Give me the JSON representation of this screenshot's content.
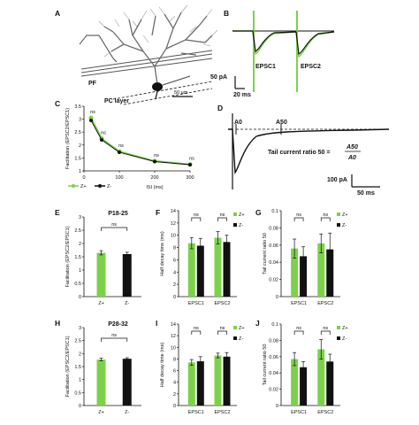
{
  "panel_labels": [
    "A",
    "B",
    "C",
    "D",
    "E",
    "F",
    "G",
    "H",
    "I",
    "J"
  ],
  "colors": {
    "z_plus": "#7dd14a",
    "z_minus": "#111111"
  },
  "panelA": {
    "labels": {
      "pf": "PF",
      "pc_layer": "PC layer",
      "scale": "50 µm"
    }
  },
  "panelB": {
    "labels": {
      "epsc1": "EPSC1",
      "epsc2": "EPSC2",
      "scale_y": "50 pA",
      "scale_x": "20 ms"
    }
  },
  "panelD": {
    "labels": {
      "a0": "A0",
      "a50": "A50",
      "formula_lhs": "Tail current ratio 50 =",
      "num": "A50",
      "den": "A0",
      "scale_y": "100 pA",
      "scale_x": "50 ms"
    }
  },
  "chart_data": [
    {
      "panel": "C",
      "type": "line",
      "xlabel": "ISI (ms)",
      "ylabel": "Facilitation (EPSC2/EPSC1)",
      "xticks": [
        "0",
        "100",
        "200",
        "300"
      ],
      "yticks": [
        "1",
        "1.5",
        "2",
        "2.5",
        "3",
        "3.5"
      ],
      "xlim": [
        0,
        300
      ],
      "ylim": [
        1,
        3.5
      ],
      "x": [
        20,
        50,
        100,
        200,
        300
      ],
      "series": [
        {
          "name": "Z+",
          "values": [
            3.05,
            2.25,
            1.75,
            1.38,
            1.25
          ]
        },
        {
          "name": "Z-",
          "values": [
            2.95,
            2.2,
            1.72,
            1.36,
            1.24
          ]
        }
      ],
      "annotations": [
        "ns",
        "ns",
        "ns",
        "ns",
        "ns"
      ],
      "legend": "bottom-left"
    },
    {
      "panel": "E",
      "type": "bar",
      "title": "P18-25",
      "ylabel": "Facilitation (EPSC2/EPSC1)",
      "yticks": [
        "0",
        "0.5",
        "1",
        "1.5",
        "2",
        "2.5",
        "3"
      ],
      "ylim": [
        0,
        3
      ],
      "categories": [
        "Z+",
        "Z-"
      ],
      "values": [
        1.65,
        1.6
      ],
      "errors": [
        0.08,
        0.07
      ],
      "annotation": "ns"
    },
    {
      "panel": "F",
      "type": "bar",
      "ylabel": "Half decay time (ms)",
      "yticks": [
        "0",
        "2",
        "4",
        "6",
        "8",
        "10",
        "12",
        "14"
      ],
      "ylim": [
        0,
        14
      ],
      "categories": [
        "EPSC1",
        "EPSC2"
      ],
      "series": [
        {
          "name": "Z+",
          "values": [
            8.7,
            9.6
          ],
          "errors": [
            0.9,
            1.0
          ]
        },
        {
          "name": "Z-",
          "values": [
            8.3,
            8.9
          ],
          "errors": [
            1.2,
            1.1
          ]
        }
      ],
      "annotations": [
        "ns",
        "ns"
      ],
      "legend": "top-right"
    },
    {
      "panel": "G",
      "type": "bar",
      "ylabel": "Tail current ratio 50",
      "yticks": [
        "0",
        "0.02",
        "0.04",
        "0.06",
        "0.08",
        "0.1"
      ],
      "ylim": [
        0,
        0.1
      ],
      "categories": [
        "EPSC1",
        "EPSC2"
      ],
      "series": [
        {
          "name": "Z+",
          "values": [
            0.056,
            0.062
          ],
          "errors": [
            0.011,
            0.011
          ]
        },
        {
          "name": "Z-",
          "values": [
            0.047,
            0.055
          ],
          "errors": [
            0.011,
            0.019
          ]
        }
      ],
      "annotations": [
        "ns",
        "ns"
      ],
      "legend": "top-right"
    },
    {
      "panel": "H",
      "type": "bar",
      "title": "P28-32",
      "ylabel": "Facilitation (EPSC2/EPSC1)",
      "yticks": [
        "0",
        "0.5",
        "1",
        "1.5",
        "2",
        "2.5",
        "3"
      ],
      "ylim": [
        0,
        3
      ],
      "categories": [
        "Z+",
        "Z-"
      ],
      "values": [
        1.77,
        1.8
      ],
      "errors": [
        0.05,
        0.04
      ],
      "annotation": "ns"
    },
    {
      "panel": "I",
      "type": "bar",
      "ylabel": "Half decay time (ms)",
      "yticks": [
        "0",
        "2",
        "4",
        "6",
        "8",
        "10",
        "12",
        "14"
      ],
      "ylim": [
        0,
        14
      ],
      "categories": [
        "EPSC1",
        "EPSC2"
      ],
      "series": [
        {
          "name": "Z+",
          "values": [
            7.4,
            8.6
          ],
          "errors": [
            0.5,
            0.4
          ]
        },
        {
          "name": "Z-",
          "values": [
            7.6,
            8.4
          ],
          "errors": [
            0.8,
            0.7
          ]
        }
      ],
      "annotations": [
        "ns",
        "ns"
      ],
      "legend": "top-right"
    },
    {
      "panel": "J",
      "type": "bar",
      "ylabel": "Tail current ratio 50",
      "yticks": [
        "0",
        "0.02",
        "0.04",
        "0.06",
        "0.08",
        "0.1"
      ],
      "ylim": [
        0,
        0.1
      ],
      "categories": [
        "EPSC1",
        "EPSC2"
      ],
      "series": [
        {
          "name": "Z+",
          "values": [
            0.057,
            0.069
          ],
          "errors": [
            0.008,
            0.012
          ]
        },
        {
          "name": "Z-",
          "values": [
            0.047,
            0.054
          ],
          "errors": [
            0.007,
            0.009
          ]
        }
      ],
      "annotations": [
        "ns",
        "ns"
      ],
      "legend": "top-right"
    }
  ]
}
